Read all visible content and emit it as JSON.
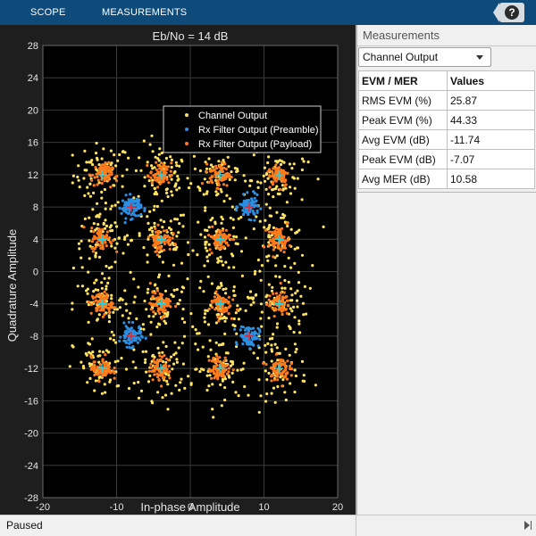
{
  "toolstrip": {
    "tabs": [
      "SCOPE",
      "MEASUREMENTS"
    ],
    "help_label": "?"
  },
  "plot": {
    "title": "Eb/No = 14 dB",
    "xlabel": "In-phase Amplitude",
    "ylabel": "Quadrature Amplitude",
    "legend": [
      "Channel Output",
      "Rx Filter Output (Preamble)",
      "Rx Filter Output (Payload)"
    ]
  },
  "chart_data": {
    "type": "scatter",
    "title": "Eb/No = 14 dB",
    "xlabel": "In-phase Amplitude",
    "ylabel": "Quadrature Amplitude",
    "xlim": [
      -20,
      20
    ],
    "ylim": [
      -28,
      28
    ],
    "xticks": [
      -20,
      -10,
      0,
      10,
      20
    ],
    "yticks": [
      28,
      24,
      20,
      16,
      12,
      8,
      4,
      0,
      -4,
      -8,
      -12,
      -16,
      -20,
      -24,
      -28
    ],
    "grid": true,
    "legend_position": "top-right",
    "series": [
      {
        "name": "Channel Output",
        "color": "#ffe45c",
        "centers": [
          [
            -12,
            12
          ],
          [
            -4,
            12
          ],
          [
            4,
            12
          ],
          [
            12,
            12
          ],
          [
            -12,
            4
          ],
          [
            -4,
            4
          ],
          [
            4,
            4
          ],
          [
            12,
            4
          ],
          [
            -12,
            -4
          ],
          [
            -4,
            -4
          ],
          [
            4,
            -4
          ],
          [
            12,
            -4
          ],
          [
            -12,
            -12
          ],
          [
            -4,
            -12
          ],
          [
            4,
            -12
          ],
          [
            12,
            -12
          ]
        ],
        "spread": 3.5
      },
      {
        "name": "Rx Filter Output (Preamble)",
        "color": "#2b8fe3",
        "centers": [
          [
            -8,
            8
          ],
          [
            8,
            8
          ],
          [
            -8,
            -8
          ],
          [
            8,
            -8
          ]
        ],
        "spread": 1.2
      },
      {
        "name": "Rx Filter Output (Payload)",
        "color": "#ff7a1a",
        "centers": [
          [
            -12,
            12
          ],
          [
            -4,
            12
          ],
          [
            4,
            12
          ],
          [
            12,
            12
          ],
          [
            -12,
            4
          ],
          [
            -4,
            4
          ],
          [
            4,
            4
          ],
          [
            12,
            4
          ],
          [
            -12,
            -4
          ],
          [
            -4,
            -4
          ],
          [
            4,
            -4
          ],
          [
            12,
            -4
          ],
          [
            -12,
            -12
          ],
          [
            -4,
            -12
          ],
          [
            4,
            -12
          ],
          [
            12,
            -12
          ]
        ],
        "spread": 1.3
      }
    ],
    "reference_markers": [
      {
        "color": "#22d3e6",
        "points": [
          [
            -12,
            12
          ],
          [
            -4,
            12
          ],
          [
            4,
            12
          ],
          [
            12,
            12
          ],
          [
            -12,
            4
          ],
          [
            -4,
            4
          ],
          [
            4,
            4
          ],
          [
            12,
            4
          ],
          [
            -12,
            -4
          ],
          [
            -4,
            -4
          ],
          [
            4,
            -4
          ],
          [
            12,
            -4
          ],
          [
            -12,
            -12
          ],
          [
            -4,
            -12
          ],
          [
            4,
            -12
          ],
          [
            12,
            -12
          ]
        ]
      },
      {
        "color": "#e8282c",
        "points": [
          [
            -8,
            8
          ],
          [
            8,
            8
          ],
          [
            -8,
            -8
          ],
          [
            8,
            -8
          ]
        ]
      }
    ]
  },
  "panel": {
    "title": "Measurements",
    "dropdown": "Channel Output",
    "table": {
      "headers": [
        "EVM / MER",
        "Values"
      ],
      "rows": [
        [
          "RMS EVM (%)",
          "25.87"
        ],
        [
          "Peak EVM (%)",
          "44.33"
        ],
        [
          "Avg EVM (dB)",
          "-11.74"
        ],
        [
          "Peak EVM (dB)",
          "-7.07"
        ],
        [
          "Avg MER (dB)",
          "10.58"
        ]
      ]
    }
  },
  "status": {
    "text": "Paused"
  },
  "colors": {
    "toolstrip": "#0e4a7a",
    "plot_background": "#1e1e1e",
    "axes_background": "#000000",
    "grid": "#3a3a3a"
  }
}
